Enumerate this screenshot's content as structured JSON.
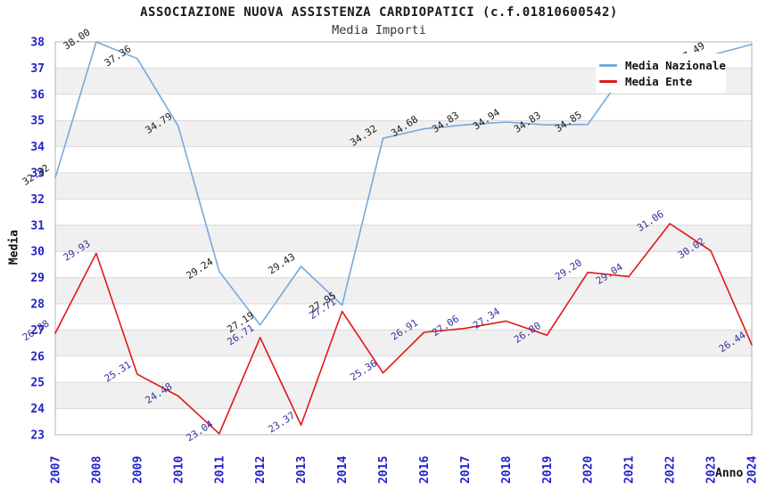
{
  "title": "ASSOCIAZIONE NUOVA ASSISTENZA CARDIOPATICI (c.f.01810600542)",
  "subtitle": "Media Importi",
  "axes": {
    "y_label": "Media",
    "x_label": "Anno",
    "y_ticks": [
      38,
      37,
      36,
      35,
      34,
      33,
      32,
      31,
      30,
      29,
      28,
      27,
      26,
      25,
      24,
      23
    ],
    "tick_color": "#2222cc"
  },
  "legend": {
    "items": [
      {
        "label": "Media Nazionale",
        "color": "#76a9dc"
      },
      {
        "label": "Media Ente",
        "color": "#e11818"
      }
    ]
  },
  "colors": {
    "band_gray": "#f0f0f0",
    "grid_line": "#d9d9d9",
    "plot_border": "#b5b5b5"
  },
  "chart_data": {
    "type": "line",
    "title": "ASSOCIAZIONE NUOVA ASSISTENZA CARDIOPATICI (c.f.01810600542)",
    "subtitle": "Media Importi",
    "xlabel": "Anno",
    "ylabel": "Media",
    "ylim": [
      23,
      38
    ],
    "grid": "horizontal-bands",
    "legend_position": "top-right",
    "categories": [
      "2007",
      "2008",
      "2009",
      "2010",
      "2011",
      "2012",
      "2013",
      "2014",
      "2015",
      "2016",
      "2017",
      "2018",
      "2019",
      "2020",
      "2021",
      "2022",
      "2023",
      "2024"
    ],
    "series": [
      {
        "name": "Media Nazionale",
        "color": "#76a9dc",
        "label_color": "#1a1a1a",
        "values": [
          32.82,
          38.0,
          37.36,
          34.79,
          29.24,
          27.19,
          29.43,
          27.95,
          34.32,
          34.68,
          34.83,
          34.94,
          34.83,
          34.85,
          37.05,
          37.2,
          37.49,
          37.9
        ],
        "label_hidden_indices": [
          15,
          17
        ]
      },
      {
        "name": "Media Ente",
        "color": "#e11818",
        "label_color": "#333399",
        "values": [
          26.88,
          29.93,
          25.31,
          24.48,
          23.04,
          26.71,
          23.37,
          27.71,
          25.36,
          26.91,
          27.06,
          27.34,
          26.8,
          29.2,
          29.04,
          31.06,
          30.02,
          26.44
        ],
        "label_hidden_indices": []
      }
    ]
  }
}
